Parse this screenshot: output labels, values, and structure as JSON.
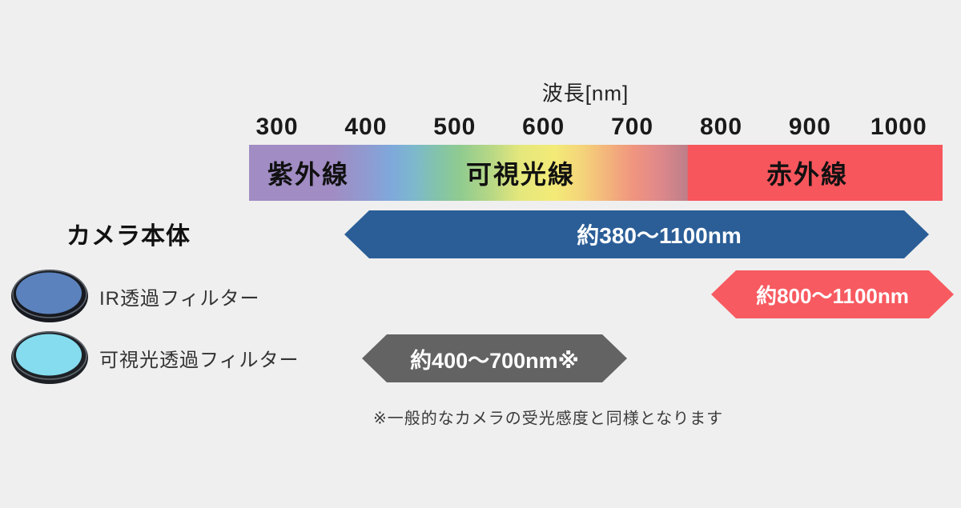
{
  "axis": {
    "title": "波長[nm]",
    "ticks": [
      "300",
      "400",
      "500",
      "600",
      "700",
      "800",
      "900",
      "1000"
    ]
  },
  "spectrum": {
    "regions": [
      {
        "label": "紫外線",
        "name": "ultraviolet"
      },
      {
        "label": "可視光線",
        "name": "visible-light"
      },
      {
        "label": "赤外線",
        "name": "infrared"
      }
    ],
    "uv_color": "#a18cc3",
    "infrared_color": "#f7565d"
  },
  "rows": {
    "camera": {
      "label": "カメラ本体",
      "range": "約380〜1100nm",
      "range_nm": [
        380,
        1100
      ],
      "color": "#2b5e97"
    },
    "ir_filter": {
      "label": "IR透過フィルター",
      "range": "約800〜1100nm",
      "range_nm": [
        800,
        1100
      ],
      "color": "#f75a60",
      "lens_color": "#5b82bc",
      "rim_color": "#16191f"
    },
    "vis_filter": {
      "label": "可視光透過フィルター",
      "range": "約400〜700nm※",
      "range_nm": [
        400,
        700
      ],
      "color": "#636363",
      "lens_color": "#85dcee",
      "rim_color": "#1d2126"
    }
  },
  "footnote": "※一般的なカメラの受光感度と同様となります",
  "background_color": "#efefef"
}
